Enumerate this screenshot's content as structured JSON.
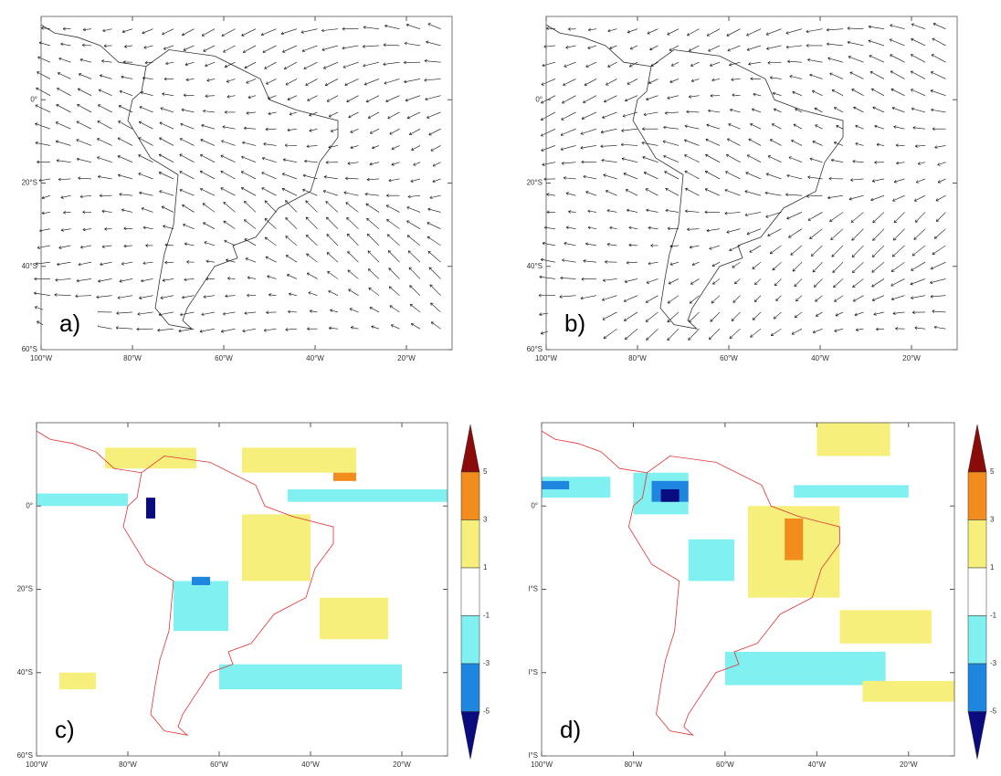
{
  "panels": [
    {
      "label": "a)",
      "kind": "vector",
      "lat_labels": [
        "0°",
        "20°S",
        "40°S",
        "60°S"
      ],
      "lon_labels": [
        "100°W",
        "80°W",
        "60°W",
        "40°W",
        "20°W"
      ]
    },
    {
      "label": "b)",
      "kind": "vector",
      "lat_labels": [
        "0°",
        "20°S",
        "40°S",
        "60°S"
      ],
      "lon_labels": [
        "100°W",
        "80°W",
        "60°W",
        "40°W",
        "20°W"
      ]
    },
    {
      "label": "c)",
      "kind": "shaded",
      "lat_labels": [
        "0°",
        "20°S",
        "40°S",
        "60°S"
      ],
      "lon_labels": [
        "100°W",
        "80°W",
        "60°W",
        "40°W",
        "20°W"
      ]
    },
    {
      "label": "d)",
      "kind": "shaded",
      "lat_labels": [
        "0°",
        "l°S",
        "l°S",
        "l°S"
      ],
      "lon_labels": [
        "100°W",
        "80°W",
        "60°W",
        "40°W",
        "20°W"
      ]
    }
  ],
  "colorbar": {
    "levels": [
      5,
      3,
      1,
      -1,
      -3,
      -5
    ],
    "colors": [
      "#8b0a0a",
      "#f28c1c",
      "#f7ef7c",
      "#ffffff",
      "#80f0f0",
      "#1f86e0",
      "#0b0b80"
    ]
  }
}
